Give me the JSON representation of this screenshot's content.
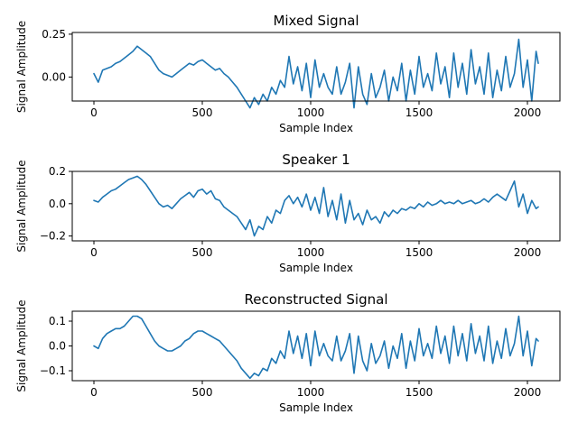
{
  "chart_data": [
    {
      "type": "line",
      "title": "Mixed Signal",
      "xlabel": "Sample Index",
      "ylabel": "Signal Amplitude",
      "xlim": [
        -100,
        2150
      ],
      "ylim": [
        -0.14,
        0.26
      ],
      "xticks": [
        0,
        500,
        1000,
        1500,
        2000
      ],
      "yticks": [
        0.0,
        0.25
      ],
      "ytick_labels": [
        "0.00",
        "0.25"
      ],
      "grid": false,
      "color": "#1f77b4",
      "series": [
        {
          "x": [
            0,
            20,
            40,
            60,
            80,
            100,
            120,
            140,
            160,
            180,
            200,
            220,
            240,
            260,
            280,
            300,
            320,
            340,
            360,
            380,
            400,
            420,
            440,
            460,
            480,
            500,
            520,
            540,
            560,
            580,
            600,
            620,
            640,
            660,
            680,
            700,
            720,
            740,
            760,
            780,
            800,
            820,
            840,
            860,
            880,
            900,
            920,
            940,
            960,
            980,
            1000,
            1020,
            1040,
            1060,
            1080,
            1100,
            1120,
            1140,
            1160,
            1180,
            1200,
            1220,
            1240,
            1260,
            1280,
            1300,
            1320,
            1340,
            1360,
            1380,
            1400,
            1420,
            1440,
            1460,
            1480,
            1500,
            1520,
            1540,
            1560,
            1580,
            1600,
            1620,
            1640,
            1660,
            1680,
            1700,
            1720,
            1740,
            1760,
            1780,
            1800,
            1820,
            1840,
            1860,
            1880,
            1900,
            1920,
            1940,
            1960,
            1980,
            2000,
            2020,
            2040,
            2050
          ],
          "y": [
            0.02,
            -0.03,
            0.04,
            0.05,
            0.06,
            0.08,
            0.09,
            0.11,
            0.13,
            0.15,
            0.18,
            0.16,
            0.14,
            0.12,
            0.08,
            0.04,
            0.02,
            0.01,
            0.0,
            0.02,
            0.04,
            0.06,
            0.08,
            0.07,
            0.09,
            0.1,
            0.08,
            0.06,
            0.04,
            0.05,
            0.02,
            0.0,
            -0.03,
            -0.06,
            -0.1,
            -0.14,
            -0.18,
            -0.12,
            -0.16,
            -0.1,
            -0.14,
            -0.06,
            -0.1,
            -0.02,
            -0.06,
            0.12,
            -0.04,
            0.06,
            -0.08,
            0.08,
            -0.12,
            0.1,
            -0.06,
            0.02,
            -0.06,
            -0.1,
            0.06,
            -0.1,
            -0.03,
            0.08,
            -0.18,
            0.06,
            -0.1,
            -0.16,
            0.02,
            -0.12,
            -0.06,
            0.04,
            -0.14,
            0.0,
            -0.08,
            0.08,
            -0.14,
            0.04,
            -0.1,
            0.12,
            -0.06,
            0.02,
            -0.08,
            0.14,
            -0.04,
            0.06,
            -0.12,
            0.14,
            -0.06,
            0.08,
            -0.1,
            0.16,
            -0.04,
            0.06,
            -0.1,
            0.14,
            -0.12,
            0.04,
            -0.08,
            0.12,
            -0.06,
            0.02,
            0.22,
            -0.06,
            0.1,
            -0.14,
            0.15,
            0.08
          ]
        }
      ]
    },
    {
      "type": "line",
      "title": "Speaker 1",
      "xlabel": "Sample Index",
      "ylabel": "Signal Amplitude",
      "xlim": [
        -100,
        2150
      ],
      "ylim": [
        -0.23,
        0.2
      ],
      "xticks": [
        0,
        500,
        1000,
        1500,
        2000
      ],
      "yticks": [
        -0.2,
        0.0,
        0.2
      ],
      "ytick_labels": [
        "−0.2",
        "0.0",
        "0.2"
      ],
      "grid": false,
      "color": "#1f77b4",
      "series": [
        {
          "x": [
            0,
            20,
            40,
            60,
            80,
            100,
            120,
            140,
            160,
            180,
            200,
            220,
            240,
            260,
            280,
            300,
            320,
            340,
            360,
            380,
            400,
            420,
            440,
            460,
            480,
            500,
            520,
            540,
            560,
            580,
            600,
            620,
            640,
            660,
            680,
            700,
            720,
            740,
            760,
            780,
            800,
            820,
            840,
            860,
            880,
            900,
            920,
            940,
            960,
            980,
            1000,
            1020,
            1040,
            1060,
            1080,
            1100,
            1120,
            1140,
            1160,
            1180,
            1200,
            1220,
            1240,
            1260,
            1280,
            1300,
            1320,
            1340,
            1360,
            1380,
            1400,
            1420,
            1440,
            1460,
            1480,
            1500,
            1520,
            1540,
            1560,
            1580,
            1600,
            1620,
            1640,
            1660,
            1680,
            1700,
            1720,
            1740,
            1760,
            1780,
            1800,
            1820,
            1840,
            1860,
            1880,
            1900,
            1920,
            1940,
            1960,
            1980,
            2000,
            2020,
            2040,
            2050
          ],
          "y": [
            0.02,
            0.01,
            0.04,
            0.06,
            0.08,
            0.09,
            0.11,
            0.13,
            0.15,
            0.16,
            0.17,
            0.15,
            0.12,
            0.08,
            0.04,
            0.0,
            -0.02,
            -0.01,
            -0.03,
            0.0,
            0.03,
            0.05,
            0.07,
            0.04,
            0.08,
            0.09,
            0.06,
            0.08,
            0.03,
            0.02,
            -0.02,
            -0.04,
            -0.06,
            -0.08,
            -0.12,
            -0.16,
            -0.1,
            -0.2,
            -0.14,
            -0.16,
            -0.08,
            -0.12,
            -0.04,
            -0.06,
            0.02,
            0.05,
            0.0,
            0.04,
            -0.02,
            0.06,
            -0.04,
            0.04,
            -0.06,
            0.1,
            -0.08,
            0.02,
            -0.1,
            0.06,
            -0.12,
            0.02,
            -0.1,
            -0.06,
            -0.13,
            -0.04,
            -0.1,
            -0.08,
            -0.12,
            -0.05,
            -0.08,
            -0.04,
            -0.06,
            -0.03,
            -0.04,
            -0.02,
            -0.03,
            0.0,
            -0.02,
            0.01,
            -0.01,
            0.0,
            0.02,
            0.0,
            0.01,
            0.0,
            0.02,
            0.0,
            0.01,
            0.02,
            0.0,
            0.01,
            0.03,
            0.01,
            0.04,
            0.06,
            0.04,
            0.02,
            0.08,
            0.14,
            -0.02,
            0.06,
            -0.06,
            0.02,
            -0.03,
            -0.02
          ]
        }
      ]
    },
    {
      "type": "line",
      "title": "Reconstructed Signal",
      "xlabel": "Sample Index",
      "ylabel": "Signal Amplitude",
      "xlim": [
        -100,
        2150
      ],
      "ylim": [
        -0.14,
        0.14
      ],
      "xticks": [
        0,
        500,
        1000,
        1500,
        2000
      ],
      "yticks": [
        -0.1,
        0.0,
        0.1
      ],
      "ytick_labels": [
        "−0.1",
        "0.0",
        "0.1"
      ],
      "grid": false,
      "color": "#1f77b4",
      "series": [
        {
          "x": [
            0,
            20,
            40,
            60,
            80,
            100,
            120,
            140,
            160,
            180,
            200,
            220,
            240,
            260,
            280,
            300,
            320,
            340,
            360,
            380,
            400,
            420,
            440,
            460,
            480,
            500,
            520,
            540,
            560,
            580,
            600,
            620,
            640,
            660,
            680,
            700,
            720,
            740,
            760,
            780,
            800,
            820,
            840,
            860,
            880,
            900,
            920,
            940,
            960,
            980,
            1000,
            1020,
            1040,
            1060,
            1080,
            1100,
            1120,
            1140,
            1160,
            1180,
            1200,
            1220,
            1240,
            1260,
            1280,
            1300,
            1320,
            1340,
            1360,
            1380,
            1400,
            1420,
            1440,
            1460,
            1480,
            1500,
            1520,
            1540,
            1560,
            1580,
            1600,
            1620,
            1640,
            1660,
            1680,
            1700,
            1720,
            1740,
            1760,
            1780,
            1800,
            1820,
            1840,
            1860,
            1880,
            1900,
            1920,
            1940,
            1960,
            1980,
            2000,
            2020,
            2040,
            2050
          ],
          "y": [
            0.0,
            -0.01,
            0.03,
            0.05,
            0.06,
            0.07,
            0.07,
            0.08,
            0.1,
            0.12,
            0.12,
            0.11,
            0.08,
            0.05,
            0.02,
            0.0,
            -0.01,
            -0.02,
            -0.02,
            -0.01,
            0.0,
            0.02,
            0.03,
            0.05,
            0.06,
            0.06,
            0.05,
            0.04,
            0.03,
            0.02,
            0.0,
            -0.02,
            -0.04,
            -0.06,
            -0.09,
            -0.11,
            -0.13,
            -0.11,
            -0.12,
            -0.09,
            -0.1,
            -0.05,
            -0.07,
            -0.02,
            -0.05,
            0.06,
            -0.03,
            0.04,
            -0.05,
            0.05,
            -0.08,
            0.06,
            -0.04,
            0.01,
            -0.04,
            -0.06,
            0.04,
            -0.06,
            -0.02,
            0.05,
            -0.11,
            0.04,
            -0.06,
            -0.1,
            0.01,
            -0.07,
            -0.04,
            0.02,
            -0.09,
            0.0,
            -0.05,
            0.05,
            -0.09,
            0.02,
            -0.06,
            0.07,
            -0.04,
            0.01,
            -0.05,
            0.08,
            -0.03,
            0.04,
            -0.07,
            0.08,
            -0.04,
            0.05,
            -0.06,
            0.09,
            -0.03,
            0.04,
            -0.06,
            0.08,
            -0.07,
            0.02,
            -0.05,
            0.07,
            -0.04,
            0.01,
            0.12,
            -0.04,
            0.06,
            -0.08,
            0.03,
            0.02
          ]
        }
      ]
    }
  ]
}
